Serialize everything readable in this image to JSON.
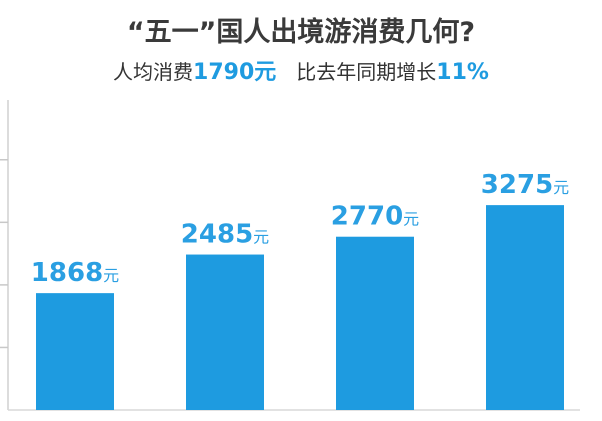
{
  "chart_data": {
    "type": "bar",
    "title": "“五一”国人出境游消费几何?",
    "subtitle": [
      "人均消费",
      "1790元",
      "比去年同期增长",
      "11%"
    ],
    "categories": [
      null,
      null,
      null,
      null
    ],
    "values": [
      1868,
      2485,
      2770,
      3275
    ],
    "value_labels": [
      "1868元",
      "2485元",
      "2770元",
      "3275元"
    ],
    "color": "#1e9be0",
    "label_color": "#2a9fe2",
    "ylim": [
      0,
      4300
    ],
    "yticks": [
      1000,
      2000,
      3000,
      4000
    ],
    "grid": false
  }
}
